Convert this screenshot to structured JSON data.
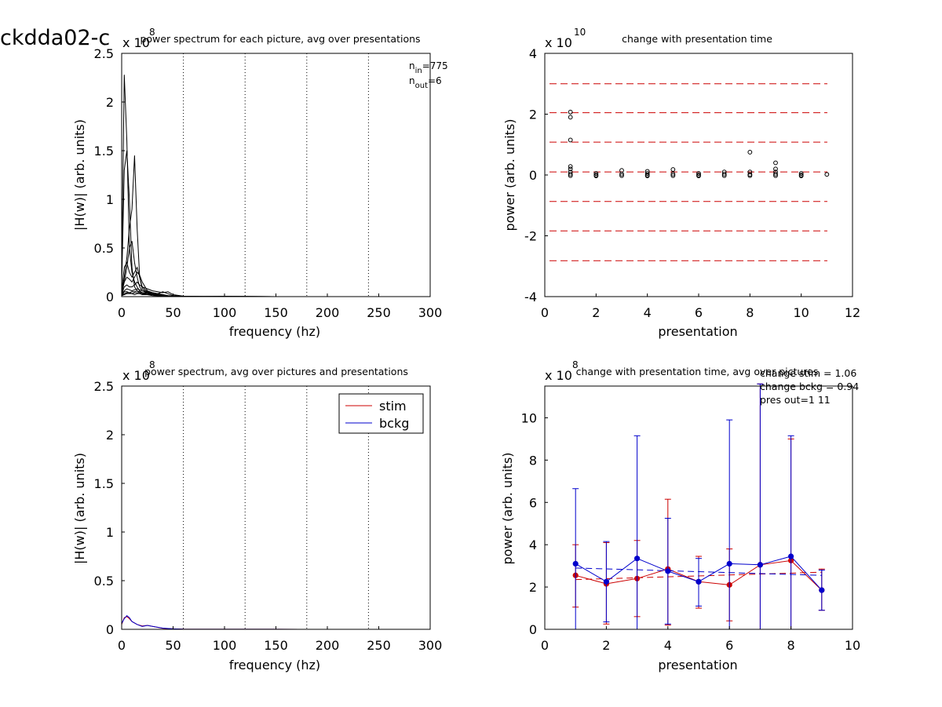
{
  "figure_title": "ckdda02-c",
  "chart_data": [
    {
      "id": "p1",
      "type": "line",
      "title": "power spectrum for each picture, avg over presentations",
      "xlabel": "frequency (hz)",
      "ylabel": "|H(w)| (arb. units)",
      "exponent_label": "x 10",
      "exponent": "8",
      "xlim": [
        0,
        300
      ],
      "ylim": [
        0,
        2.5
      ],
      "xticks": [
        "0",
        "50",
        "100",
        "150",
        "200",
        "250",
        "300"
      ],
      "yticks": [
        "0",
        "0.5",
        "1",
        "1.5",
        "2",
        "2.5"
      ],
      "vlines": [
        60,
        120,
        180,
        240,
        300
      ],
      "annotation": {
        "n_in_label": "n",
        "n_in_sub": "in",
        "n_in_value": "=775",
        "n_out_label": "n",
        "n_out_sub": "out",
        "n_out_value": "=6"
      },
      "x": [
        0,
        2.5,
        5,
        7.5,
        10,
        12.5,
        15,
        17.5,
        20,
        25,
        30,
        35,
        40,
        45,
        50,
        60,
        80,
        100,
        150,
        200,
        250,
        300
      ],
      "series": [
        {
          "values": [
            0.2,
            2.28,
            1.6,
            0.5,
            0.25,
            0.15,
            0.1,
            0.06,
            0.04,
            0.03,
            0.02,
            0.01,
            0.008,
            0.005,
            0.003,
            0.001,
            0.001,
            0.001,
            0,
            0,
            0,
            0
          ]
        },
        {
          "values": [
            0.1,
            1.3,
            1.5,
            1.0,
            0.3,
            0.1,
            0.06,
            0.04,
            0.03,
            0.02,
            0.01,
            0.008,
            0.005,
            0.003,
            0.002,
            0.001,
            0.001,
            0,
            0,
            0,
            0,
            0
          ]
        },
        {
          "values": [
            0.05,
            0.2,
            0.4,
            0.7,
            0.9,
            1.45,
            0.7,
            0.2,
            0.08,
            0.04,
            0.03,
            0.02,
            0.01,
            0.005,
            0.003,
            0.001,
            0.001,
            0.001,
            0,
            0,
            0,
            0
          ]
        },
        {
          "values": [
            0.05,
            0.15,
            0.3,
            0.5,
            0.57,
            0.35,
            0.2,
            0.1,
            0.06,
            0.04,
            0.02,
            0.01,
            0.008,
            0.005,
            0.002,
            0.001,
            0,
            0,
            0,
            0,
            0,
            0
          ]
        },
        {
          "values": [
            0.05,
            0.3,
            0.35,
            0.25,
            0.2,
            0.25,
            0.3,
            0.2,
            0.1,
            0.05,
            0.03,
            0.02,
            0.01,
            0.005,
            0.003,
            0.001,
            0,
            0.003,
            0,
            0,
            0,
            0
          ]
        },
        {
          "values": [
            0.03,
            0.15,
            0.2,
            0.18,
            0.15,
            0.2,
            0.25,
            0.22,
            0.15,
            0.06,
            0.04,
            0.03,
            0.02,
            0.01,
            0.005,
            0.002,
            0.001,
            0.001,
            0,
            0,
            0,
            0
          ]
        },
        {
          "values": [
            0.02,
            0.1,
            0.12,
            0.1,
            0.1,
            0.12,
            0.15,
            0.12,
            0.1,
            0.08,
            0.06,
            0.05,
            0.04,
            0.05,
            0.02,
            0.005,
            0.001,
            0.002,
            0,
            0,
            0,
            0
          ]
        },
        {
          "values": [
            0.02,
            0.06,
            0.08,
            0.07,
            0.06,
            0.07,
            0.08,
            0.07,
            0.06,
            0.05,
            0.04,
            0.03,
            0.05,
            0.03,
            0.01,
            0.003,
            0.001,
            0.001,
            0,
            0,
            0,
            0
          ]
        },
        {
          "values": [
            0.01,
            0.05,
            0.05,
            0.04,
            0.05,
            0.05,
            0.06,
            0.05,
            0.04,
            0.04,
            0.03,
            0.03,
            0.02,
            0.01,
            0.005,
            0.002,
            0.001,
            0.001,
            0,
            0,
            0,
            0
          ]
        },
        {
          "values": [
            0.01,
            0.03,
            0.04,
            0.04,
            0.03,
            0.04,
            0.04,
            0.04,
            0.03,
            0.03,
            0.02,
            0.02,
            0.015,
            0.008,
            0.004,
            0.001,
            0,
            0,
            0,
            0,
            0,
            0
          ]
        },
        {
          "values": [
            0.01,
            0.02,
            0.03,
            0.03,
            0.03,
            0.02,
            0.03,
            0.03,
            0.02,
            0.02,
            0.02,
            0.01,
            0.01,
            0.005,
            0.003,
            0.001,
            0,
            0,
            0,
            0,
            0,
            0
          ]
        }
      ],
      "colors": {
        "line": "#000000",
        "vline": "#000000"
      }
    },
    {
      "id": "p2",
      "type": "scatter",
      "title": "change with presentation time",
      "xlabel": "presentation",
      "ylabel": "power (arb. units)",
      "exponent_label": "x 10",
      "exponent": "10",
      "xlim": [
        0,
        12
      ],
      "ylim": [
        -4,
        4
      ],
      "xticks": [
        "0",
        "2",
        "4",
        "6",
        "8",
        "10",
        "12"
      ],
      "yticks": [
        "-4",
        "-2",
        "0",
        "2",
        "4"
      ],
      "hlines": [
        3.0,
        2.05,
        1.08,
        0.1,
        -0.87,
        -1.84,
        -2.82
      ],
      "colors": {
        "hline": "#cc0000",
        "marker": "#000000"
      },
      "points": [
        {
          "x": 1,
          "y": 2.07
        },
        {
          "x": 1,
          "y": 1.9
        },
        {
          "x": 1,
          "y": 1.15
        },
        {
          "x": 1,
          "y": 0.28
        },
        {
          "x": 1,
          "y": 0.2
        },
        {
          "x": 1,
          "y": 0.1
        },
        {
          "x": 1,
          "y": 0.03
        },
        {
          "x": 1,
          "y": -0.02
        },
        {
          "x": 2,
          "y": 0.05
        },
        {
          "x": 2,
          "y": 0.0
        },
        {
          "x": 2,
          "y": -0.03
        },
        {
          "x": 3,
          "y": 0.15
        },
        {
          "x": 3,
          "y": 0.03
        },
        {
          "x": 3,
          "y": -0.02
        },
        {
          "x": 4,
          "y": 0.12
        },
        {
          "x": 4,
          "y": 0.05
        },
        {
          "x": 4,
          "y": 0.0
        },
        {
          "x": 4,
          "y": -0.03
        },
        {
          "x": 5,
          "y": 0.18
        },
        {
          "x": 5,
          "y": 0.03
        },
        {
          "x": 5,
          "y": -0.02
        },
        {
          "x": 6,
          "y": 0.05
        },
        {
          "x": 6,
          "y": 0.0
        },
        {
          "x": 6,
          "y": -0.03
        },
        {
          "x": 7,
          "y": 0.1
        },
        {
          "x": 7,
          "y": 0.03
        },
        {
          "x": 7,
          "y": -0.02
        },
        {
          "x": 8,
          "y": 0.75
        },
        {
          "x": 8,
          "y": 0.1
        },
        {
          "x": 8,
          "y": 0.02
        },
        {
          "x": 8,
          "y": -0.02
        },
        {
          "x": 9,
          "y": 0.4
        },
        {
          "x": 9,
          "y": 0.2
        },
        {
          "x": 9,
          "y": 0.1
        },
        {
          "x": 9,
          "y": 0.03
        },
        {
          "x": 9,
          "y": -0.02
        },
        {
          "x": 10,
          "y": 0.05
        },
        {
          "x": 10,
          "y": 0.0
        },
        {
          "x": 10,
          "y": -0.03
        },
        {
          "x": 11,
          "y": 0.02
        }
      ]
    },
    {
      "id": "p3",
      "type": "line",
      "title": "power spectrum, avg over pictures and presentations",
      "xlabel": "frequency (hz)",
      "ylabel": "|H(w)| (arb. units)",
      "exponent_label": "x 10",
      "exponent": "8",
      "xlim": [
        0,
        300
      ],
      "ylim": [
        0,
        2.5
      ],
      "xticks": [
        "0",
        "50",
        "100",
        "150",
        "200",
        "250",
        "300"
      ],
      "yticks": [
        "0",
        "0.5",
        "1",
        "1.5",
        "2",
        "2.5"
      ],
      "vlines": [
        60,
        120,
        180,
        240,
        300
      ],
      "legend": {
        "position": "top-right"
      },
      "x": [
        0,
        2.5,
        5,
        7.5,
        10,
        15,
        20,
        25,
        30,
        40,
        50,
        60,
        100,
        150,
        200,
        250,
        300
      ],
      "series": [
        {
          "name": "stim",
          "color": "#cc0000",
          "values": [
            0.05,
            0.12,
            0.13,
            0.11,
            0.08,
            0.05,
            0.035,
            0.04,
            0.03,
            0.01,
            0.005,
            0.002,
            0.001,
            0.001,
            0,
            0,
            0
          ]
        },
        {
          "name": "bckg",
          "color": "#0000cc",
          "values": [
            0.06,
            0.11,
            0.14,
            0.12,
            0.08,
            0.05,
            0.03,
            0.04,
            0.03,
            0.012,
            0.005,
            0.002,
            0.001,
            0.001,
            0,
            0,
            0
          ]
        }
      ],
      "colors": {
        "vline": "#000000"
      }
    },
    {
      "id": "p4",
      "type": "line",
      "title": "change with presentation time, avg over pictures",
      "xlabel": "presentation",
      "ylabel": "power (arb. units)",
      "exponent_label": "x 10",
      "exponent": "8",
      "xlim": [
        0,
        10
      ],
      "ylim": [
        0,
        11.5
      ],
      "xticks": [
        "0",
        "2",
        "4",
        "6",
        "8",
        "10"
      ],
      "yticks": [
        "0",
        "2",
        "4",
        "6",
        "8",
        "10"
      ],
      "annotations": [
        "change stim = 1.06",
        "change bckg = 0.94",
        "pres out=1 11"
      ],
      "x": [
        1,
        2,
        3,
        4,
        5,
        6,
        7,
        8,
        9
      ],
      "series": [
        {
          "name": "stim",
          "color": "#cc0000",
          "values": [
            2.55,
            2.15,
            2.4,
            2.85,
            2.25,
            2.1,
            3.05,
            3.25,
            1.85
          ],
          "err_lo": [
            1.05,
            0.25,
            0.6,
            0.2,
            1.0,
            0.4,
            0,
            0,
            0.9
          ],
          "err_hi": [
            4.0,
            4.1,
            4.2,
            6.15,
            3.45,
            3.8,
            11.6,
            9.0,
            2.85
          ],
          "trend": [
            2.35,
            2.7
          ]
        },
        {
          "name": "bckg",
          "color": "#0000cc",
          "values": [
            3.1,
            2.25,
            3.35,
            2.75,
            2.25,
            3.1,
            3.05,
            3.45,
            1.85
          ],
          "err_lo": [
            0,
            0.35,
            0,
            0.25,
            1.1,
            0,
            0,
            0,
            0.9
          ],
          "err_hi": [
            6.65,
            4.15,
            9.15,
            5.25,
            3.35,
            9.9,
            11.6,
            9.15,
            2.8
          ],
          "trend": [
            2.9,
            2.55
          ]
        }
      ]
    }
  ]
}
